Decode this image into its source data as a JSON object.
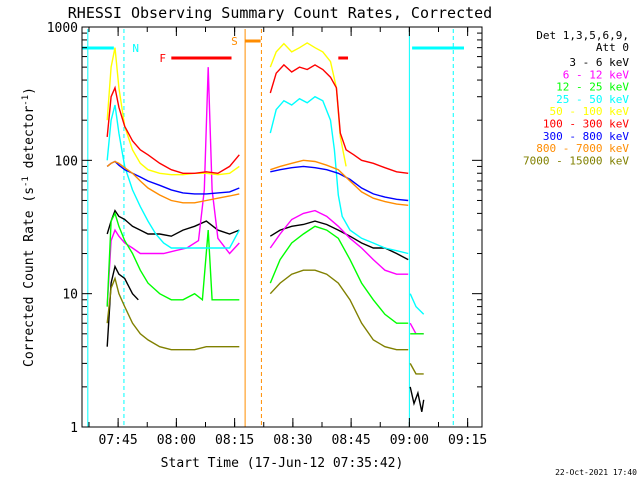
{
  "chart_data": {
    "type": "line",
    "title": "RHESSI Observing Summary Count Rates, Corrected",
    "xlabel": "Start Time (17-Jun-12 07:35:42)",
    "ylabel_main": "Corrected Count Rate (s",
    "ylabel_sup1": "-1",
    "ylabel_mid": " detector",
    "ylabel_sup2": "-1",
    "ylabel_end": ")",
    "y_scale": "log",
    "ylim": [
      1,
      1000
    ],
    "y_ticks": [
      {
        "v": 1,
        "label": "1"
      },
      {
        "v": 10,
        "label": "10"
      },
      {
        "v": 100,
        "label": "100"
      },
      {
        "v": 1000,
        "label": "1000"
      }
    ],
    "x_range_min": [
      0,
      103
    ],
    "x_ticks": [
      {
        "v": 9.3,
        "label": "07:45"
      },
      {
        "v": 24.3,
        "label": "08:00"
      },
      {
        "v": 39.3,
        "label": "08:15"
      },
      {
        "v": 54.3,
        "label": "08:30"
      },
      {
        "v": 69.3,
        "label": "08:45"
      },
      {
        "v": 84.3,
        "label": "09:00"
      },
      {
        "v": 99.3,
        "label": "09:15"
      }
    ],
    "legend_header": [
      "Det 1,3,5,6,9,",
      "Att 0"
    ],
    "legend_position": "right",
    "series": [
      {
        "name": "3 - 6 keV",
        "color": "#000000",
        "seg1": [
          [
            6.5,
            4
          ],
          [
            7.5,
            12
          ],
          [
            8.5,
            16
          ],
          [
            9.5,
            14
          ],
          [
            11,
            13
          ],
          [
            13,
            10
          ],
          [
            14.5,
            9
          ]
        ],
        "seg2": [
          [
            6.5,
            28
          ],
          [
            7.5,
            35
          ],
          [
            8.5,
            42
          ],
          [
            9.5,
            38
          ],
          [
            11,
            36
          ],
          [
            13,
            32
          ],
          [
            15,
            30
          ],
          [
            17,
            28
          ],
          [
            20,
            28
          ],
          [
            23,
            27
          ],
          [
            26,
            30
          ],
          [
            29,
            32
          ],
          [
            32,
            35
          ],
          [
            35,
            30
          ],
          [
            38,
            28
          ],
          [
            40.5,
            30
          ]
        ],
        "seg3": [
          [
            48.5,
            27
          ],
          [
            51,
            30
          ],
          [
            54,
            32
          ],
          [
            57,
            33
          ],
          [
            60,
            35
          ],
          [
            63,
            33
          ],
          [
            66,
            30
          ],
          [
            69,
            27
          ],
          [
            72,
            24
          ],
          [
            75,
            22
          ],
          [
            78,
            22
          ],
          [
            81,
            20
          ],
          [
            84,
            18
          ]
        ],
        "seg4": [
          [
            84.5,
            2
          ],
          [
            85.5,
            1.5
          ],
          [
            86.5,
            1.8
          ],
          [
            87.5,
            1.3
          ],
          [
            88,
            1.6
          ]
        ]
      },
      {
        "name": "6 - 12 keV",
        "color": "#ff00ff",
        "seg1": [
          [
            6.5,
            8
          ],
          [
            7.5,
            25
          ],
          [
            8.5,
            30
          ],
          [
            9.5,
            27
          ],
          [
            11,
            24
          ],
          [
            13,
            22
          ],
          [
            15,
            20
          ],
          [
            18,
            20
          ],
          [
            21,
            20
          ],
          [
            24,
            21
          ],
          [
            27,
            22
          ],
          [
            30,
            25
          ],
          [
            31.5,
            60
          ],
          [
            32.5,
            500
          ],
          [
            33.5,
            60
          ],
          [
            35,
            26
          ],
          [
            38,
            20
          ],
          [
            40.5,
            24
          ]
        ],
        "seg2": [
          [
            48.5,
            22
          ],
          [
            51,
            28
          ],
          [
            54,
            36
          ],
          [
            57,
            40
          ],
          [
            60,
            42
          ],
          [
            63,
            38
          ],
          [
            66,
            32
          ],
          [
            69,
            26
          ],
          [
            72,
            22
          ],
          [
            75,
            18
          ],
          [
            78,
            15
          ],
          [
            81,
            14
          ],
          [
            84,
            14
          ]
        ],
        "seg3": [
          [
            84.5,
            6
          ],
          [
            86,
            5
          ],
          [
            88,
            5
          ]
        ]
      },
      {
        "name": "12 - 25 keV",
        "color": "#00ff00",
        "seg1": [
          [
            6.5,
            8
          ],
          [
            7.5,
            35
          ],
          [
            8.5,
            40
          ],
          [
            9.5,
            32
          ],
          [
            11,
            25
          ],
          [
            13,
            20
          ],
          [
            15,
            15
          ],
          [
            17,
            12
          ],
          [
            20,
            10
          ],
          [
            23,
            9
          ],
          [
            26,
            9
          ],
          [
            29,
            10
          ],
          [
            31,
            9
          ],
          [
            32.5,
            30
          ],
          [
            33.5,
            9
          ],
          [
            35,
            9
          ],
          [
            38,
            9
          ],
          [
            40.5,
            9
          ]
        ],
        "seg2": [
          [
            48.5,
            12
          ],
          [
            51,
            18
          ],
          [
            54,
            24
          ],
          [
            57,
            28
          ],
          [
            60,
            32
          ],
          [
            63,
            30
          ],
          [
            66,
            26
          ],
          [
            69,
            18
          ],
          [
            72,
            12
          ],
          [
            75,
            9
          ],
          [
            78,
            7
          ],
          [
            81,
            6
          ],
          [
            84,
            6
          ]
        ],
        "seg3": [
          [
            84.5,
            5
          ],
          [
            86,
            5
          ],
          [
            88,
            5
          ]
        ]
      },
      {
        "name": "25 - 50 keV",
        "color": "#00ffff",
        "seg1": [
          [
            6.5,
            100
          ],
          [
            7.5,
            200
          ],
          [
            8.5,
            260
          ],
          [
            9.5,
            160
          ],
          [
            11,
            90
          ],
          [
            13,
            60
          ],
          [
            15,
            45
          ],
          [
            17,
            35
          ],
          [
            19,
            28
          ],
          [
            21,
            24
          ],
          [
            23,
            22
          ],
          [
            26,
            22
          ],
          [
            29,
            22
          ],
          [
            32,
            22
          ],
          [
            35,
            22
          ],
          [
            38,
            22
          ],
          [
            40.5,
            30
          ]
        ],
        "seg2": [
          [
            48.5,
            160
          ],
          [
            50,
            240
          ],
          [
            52,
            280
          ],
          [
            54,
            260
          ],
          [
            56,
            290
          ],
          [
            58,
            270
          ],
          [
            60,
            300
          ],
          [
            62,
            280
          ],
          [
            64,
            200
          ],
          [
            65,
            120
          ],
          [
            66,
            55
          ],
          [
            67,
            38
          ],
          [
            69,
            30
          ],
          [
            72,
            26
          ],
          [
            75,
            24
          ],
          [
            78,
            22
          ],
          [
            81,
            21
          ],
          [
            84,
            20
          ]
        ],
        "seg3": [
          [
            84.5,
            10
          ],
          [
            86,
            8
          ],
          [
            88,
            7
          ]
        ]
      },
      {
        "name": "50 - 100 keV",
        "color": "#ffff00",
        "seg1": [
          [
            6.5,
            200
          ],
          [
            7.5,
            500
          ],
          [
            8.5,
            700
          ],
          [
            9.5,
            350
          ],
          [
            11,
            180
          ],
          [
            13,
            120
          ],
          [
            15,
            95
          ],
          [
            17,
            85
          ],
          [
            20,
            80
          ],
          [
            23,
            78
          ],
          [
            26,
            78
          ],
          [
            29,
            80
          ],
          [
            32,
            80
          ],
          [
            35,
            78
          ],
          [
            38,
            80
          ],
          [
            40.5,
            90
          ]
        ],
        "seg2": [
          [
            48.5,
            500
          ],
          [
            50,
            650
          ],
          [
            52,
            750
          ],
          [
            54,
            650
          ],
          [
            56,
            700
          ],
          [
            58,
            760
          ],
          [
            60,
            700
          ],
          [
            62,
            650
          ],
          [
            64,
            550
          ],
          [
            65.5,
            350
          ],
          [
            66.5,
            150
          ],
          [
            68,
            90
          ]
        ]
      },
      {
        "name": "100 - 300 keV",
        "color": "#ff0000",
        "seg1": [
          [
            6.5,
            150
          ],
          [
            7.5,
            300
          ],
          [
            8.5,
            350
          ],
          [
            9.5,
            250
          ],
          [
            11,
            180
          ],
          [
            13,
            140
          ],
          [
            15,
            120
          ],
          [
            17,
            110
          ],
          [
            20,
            95
          ],
          [
            23,
            85
          ],
          [
            26,
            80
          ],
          [
            29,
            80
          ],
          [
            32,
            82
          ],
          [
            35,
            80
          ],
          [
            38,
            90
          ],
          [
            40.5,
            110
          ]
        ],
        "seg2": [
          [
            48.5,
            320
          ],
          [
            50,
            450
          ],
          [
            52,
            520
          ],
          [
            54,
            460
          ],
          [
            56,
            500
          ],
          [
            58,
            480
          ],
          [
            60,
            520
          ],
          [
            62,
            480
          ],
          [
            64,
            420
          ],
          [
            65.5,
            350
          ],
          [
            66.5,
            160
          ],
          [
            68,
            120
          ],
          [
            70,
            110
          ],
          [
            72,
            100
          ],
          [
            75,
            95
          ],
          [
            78,
            88
          ],
          [
            81,
            82
          ],
          [
            84,
            80
          ]
        ]
      },
      {
        "name": "300 - 800 keV",
        "color": "#0000ff",
        "seg1": [
          [
            6.5,
            90
          ],
          [
            7.5,
            95
          ],
          [
            8.5,
            98
          ],
          [
            9.5,
            92
          ],
          [
            11,
            85
          ],
          [
            13,
            80
          ],
          [
            15,
            75
          ],
          [
            17,
            70
          ],
          [
            20,
            65
          ],
          [
            23,
            60
          ],
          [
            26,
            57
          ],
          [
            29,
            56
          ],
          [
            32,
            56
          ],
          [
            35,
            57
          ],
          [
            38,
            58
          ],
          [
            40.5,
            62
          ]
        ],
        "seg2": [
          [
            48.5,
            82
          ],
          [
            51,
            85
          ],
          [
            54,
            88
          ],
          [
            57,
            90
          ],
          [
            60,
            88
          ],
          [
            63,
            85
          ],
          [
            66,
            80
          ],
          [
            69,
            72
          ],
          [
            72,
            62
          ],
          [
            75,
            56
          ],
          [
            78,
            53
          ],
          [
            81,
            51
          ],
          [
            84,
            50
          ]
        ]
      },
      {
        "name": "800 - 7000 keV",
        "color": "#ff8c00",
        "seg1": [
          [
            6.5,
            90
          ],
          [
            7.5,
            95
          ],
          [
            8.5,
            98
          ],
          [
            9.5,
            95
          ],
          [
            11,
            88
          ],
          [
            13,
            80
          ],
          [
            15,
            70
          ],
          [
            17,
            62
          ],
          [
            20,
            55
          ],
          [
            23,
            50
          ],
          [
            26,
            48
          ],
          [
            29,
            48
          ],
          [
            32,
            50
          ],
          [
            35,
            52
          ],
          [
            38,
            54
          ],
          [
            40.5,
            56
          ]
        ],
        "seg2": [
          [
            48.5,
            85
          ],
          [
            51,
            90
          ],
          [
            54,
            95
          ],
          [
            57,
            100
          ],
          [
            60,
            98
          ],
          [
            63,
            92
          ],
          [
            66,
            85
          ],
          [
            69,
            70
          ],
          [
            72,
            58
          ],
          [
            75,
            52
          ],
          [
            78,
            49
          ],
          [
            81,
            47
          ],
          [
            84,
            46
          ]
        ]
      },
      {
        "name": "7000 - 15000 keV",
        "color": "#808000",
        "seg1": [
          [
            6.5,
            6
          ],
          [
            7.5,
            11
          ],
          [
            8.5,
            13
          ],
          [
            9.5,
            10
          ],
          [
            11,
            8
          ],
          [
            13,
            6
          ],
          [
            15,
            5
          ],
          [
            17,
            4.5
          ],
          [
            20,
            4
          ],
          [
            23,
            3.8
          ],
          [
            26,
            3.8
          ],
          [
            29,
            3.8
          ],
          [
            32,
            4
          ],
          [
            35,
            4
          ],
          [
            38,
            4
          ],
          [
            40.5,
            4
          ]
        ],
        "seg2": [
          [
            48.5,
            10
          ],
          [
            51,
            12
          ],
          [
            54,
            14
          ],
          [
            57,
            15
          ],
          [
            60,
            15
          ],
          [
            63,
            14
          ],
          [
            66,
            12
          ],
          [
            69,
            9
          ],
          [
            72,
            6
          ],
          [
            75,
            4.5
          ],
          [
            78,
            4
          ],
          [
            81,
            3.8
          ],
          [
            84,
            3.8
          ]
        ],
        "seg3": [
          [
            84.5,
            3
          ],
          [
            86,
            2.5
          ],
          [
            88,
            2.5
          ]
        ]
      }
    ],
    "annotations": [
      {
        "text": "N",
        "color": "#00ffff"
      },
      {
        "text": "F",
        "color": "#ff0000"
      },
      {
        "text": "S",
        "color": "#ff8c00"
      }
    ],
    "footer_date": "22-Oct-2021 17:40"
  }
}
